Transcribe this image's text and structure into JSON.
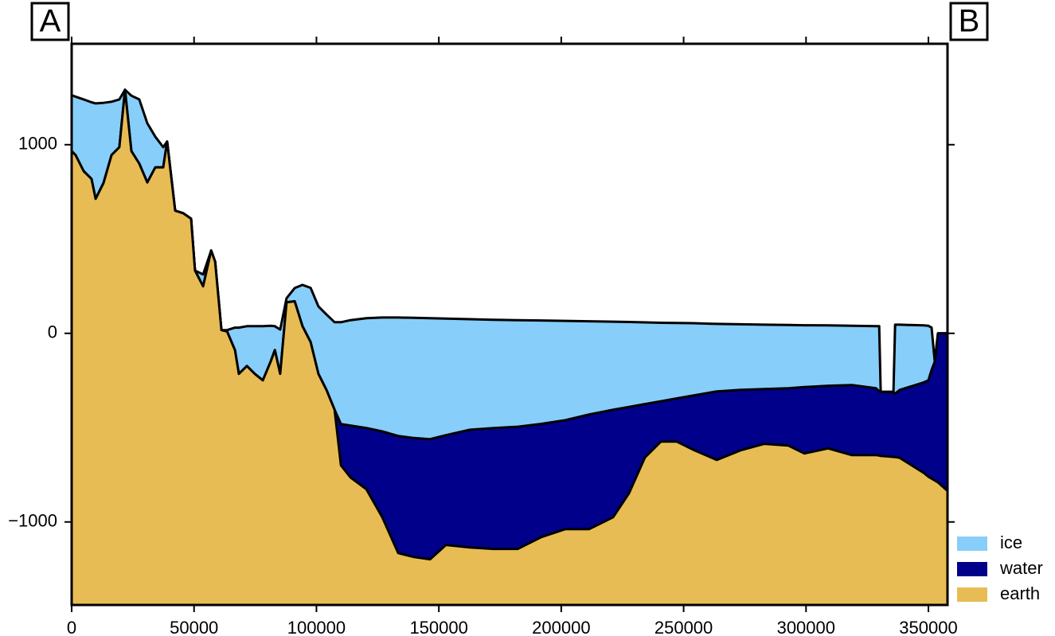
{
  "chart_data": {
    "type": "area",
    "left_label": "A",
    "right_label": "B",
    "x": [
      0,
      1600,
      4900,
      8100,
      9800,
      13000,
      16300,
      19500,
      21800,
      24400,
      27600,
      30900,
      34200,
      37400,
      39000,
      42300,
      45500,
      48800,
      50400,
      53700,
      57000,
      58600,
      61200,
      63500,
      66700,
      68300,
      71600,
      74800,
      78100,
      81300,
      83000,
      85200,
      87800,
      91100,
      94300,
      97600,
      100800,
      104100,
      107400,
      110000,
      113900,
      120400,
      126900,
      133400,
      139900,
      146400,
      152900,
      162700,
      172400,
      182200,
      191900,
      201700,
      211400,
      221200,
      227700,
      234200,
      240700,
      247200,
      253700,
      263500,
      273300,
      283000,
      292800,
      299300,
      309000,
      318800,
      328600,
      329900,
      330500,
      335700,
      336400,
      338300,
      348100,
      350000,
      351300,
      352600,
      353900,
      357800
    ],
    "series": [
      {
        "name": "ice",
        "color": "#87cefa",
        "values": [
          1262,
          1255,
          1240,
          1225,
          1219,
          1222,
          1228,
          1240,
          1291,
          1260,
          1240,
          1114,
          1042,
          987,
          1017,
          650,
          637,
          608,
          333,
          312,
          439,
          380,
          17,
          17,
          30,
          30,
          38,
          38,
          38,
          40,
          38,
          20,
          186,
          240,
          257,
          241,
          143,
          100,
          59,
          59,
          70,
          80,
          84,
          84,
          82,
          80,
          78,
          75,
          72,
          70,
          68,
          66,
          64,
          62,
          60,
          58,
          56,
          55,
          54,
          50,
          48,
          46,
          44,
          43,
          42,
          40,
          38,
          38,
          -310,
          -310,
          46,
          46,
          42,
          40,
          30,
          -150,
          0,
          0
        ]
      },
      {
        "name": "water",
        "color": "#00008b",
        "values": [
          966,
          945,
          860,
          819,
          713,
          797,
          945,
          987,
          1291,
          966,
          900,
          800,
          880,
          880,
          1017,
          650,
          637,
          608,
          333,
          249,
          439,
          380,
          17,
          10,
          -89,
          -215,
          -173,
          -215,
          -249,
          -150,
          -89,
          -215,
          165,
          170,
          38,
          -46,
          -215,
          -300,
          -405,
          -481,
          -489,
          -502,
          -520,
          -544,
          -555,
          -561,
          -540,
          -511,
          -502,
          -495,
          -480,
          -460,
          -430,
          -405,
          -390,
          -375,
          -360,
          -345,
          -330,
          -308,
          -300,
          -295,
          -291,
          -285,
          -278,
          -274,
          -291,
          -308,
          -310,
          -310,
          -320,
          -300,
          -260,
          -249,
          -194,
          -150,
          0,
          0
        ]
      },
      {
        "name": "earth",
        "color": "#e8bc55",
        "values": [
          966,
          945,
          860,
          819,
          713,
          797,
          945,
          987,
          1291,
          966,
          900,
          800,
          880,
          880,
          1017,
          650,
          637,
          608,
          333,
          249,
          439,
          380,
          17,
          10,
          -89,
          -215,
          -173,
          -215,
          -249,
          -150,
          -89,
          -215,
          165,
          170,
          38,
          -46,
          -215,
          -300,
          -405,
          -700,
          -764,
          -827,
          -975,
          -1165,
          -1186,
          -1198,
          -1122,
          -1135,
          -1143,
          -1143,
          -1080,
          -1038,
          -1038,
          -975,
          -848,
          -658,
          -574,
          -574,
          -616,
          -671,
          -620,
          -586,
          -595,
          -637,
          -610,
          -646,
          -646,
          -648,
          -650,
          -655,
          -656,
          -660,
          -740,
          -760,
          -770,
          -780,
          -790,
          -835
        ]
      }
    ],
    "xlim": [
      0,
      357800
    ],
    "ylim": [
      -1440,
      1535
    ],
    "xticks": [
      0,
      50000,
      100000,
      150000,
      200000,
      250000,
      300000,
      350000
    ],
    "yticks": [
      {
        "value": -1000,
        "label": "−1000"
      },
      0,
      1000
    ],
    "legend": "bottom-right-outside"
  }
}
